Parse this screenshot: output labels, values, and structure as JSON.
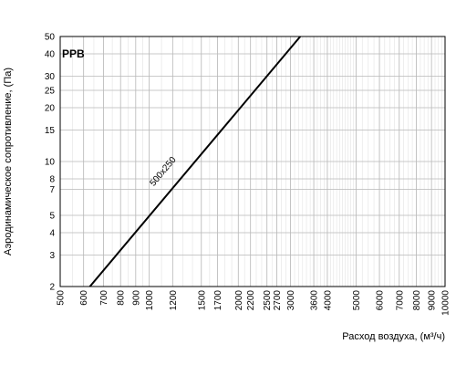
{
  "chart_data": {
    "type": "line",
    "model_label": "PPB",
    "xlabel": "Расход воздуха, (м³/ч)",
    "ylabel": "Аэродинамическое сопротивление, (Па)",
    "x_scale": "log",
    "y_scale": "log",
    "xlim": [
      500,
      10000
    ],
    "ylim": [
      2,
      50
    ],
    "x_ticks": [
      500,
      600,
      700,
      800,
      900,
      1000,
      1200,
      1500,
      1700,
      2000,
      2200,
      2500,
      2700,
      3000,
      3600,
      4000,
      5000,
      6000,
      7000,
      8000,
      9000,
      10000
    ],
    "y_ticks": [
      2,
      3,
      4,
      5,
      7,
      8,
      10,
      15,
      20,
      25,
      30,
      40,
      50
    ],
    "grid": true,
    "series": [
      {
        "name": "500x250",
        "x": [
          630,
          3240
        ],
        "y": [
          2,
          50
        ],
        "color": "#000000"
      }
    ]
  }
}
